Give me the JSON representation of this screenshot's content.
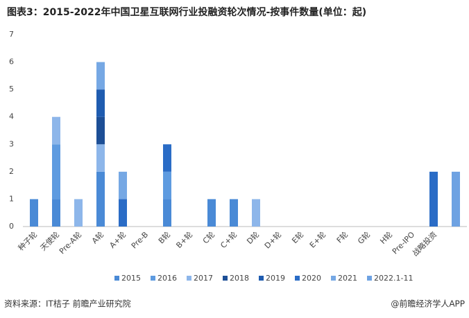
{
  "chart_data": {
    "type": "stacked_bar",
    "title": "图表3：2015-2022年中国卫星互联网行业投融资轮次情况-按事件数量(单位：起)",
    "categories": [
      "种子轮",
      "天使轮",
      "Pre-A轮",
      "A轮",
      "A+轮",
      "Pre-B",
      "B轮",
      "B+轮",
      "C轮",
      "C+轮",
      "D轮",
      "D+轮",
      "E轮",
      "E+轮",
      "F轮",
      "G轮",
      "H轮",
      "Pre-IPO",
      "战略投资",
      null
    ],
    "series": [
      {
        "name": "2015",
        "color": "#4a8ad6",
        "values": [
          1,
          1,
          0,
          2,
          0,
          0,
          1,
          0,
          1,
          1,
          0,
          0,
          0,
          0,
          0,
          0,
          0,
          0,
          0,
          0
        ]
      },
      {
        "name": "2016",
        "color": "#5e9be0",
        "values": [
          0,
          2,
          0,
          0,
          0,
          0,
          1,
          0,
          0,
          0,
          0,
          0,
          0,
          0,
          0,
          0,
          0,
          0,
          0,
          0
        ]
      },
      {
        "name": "2017",
        "color": "#8db6ea",
        "values": [
          0,
          1,
          1,
          1,
          0,
          0,
          0,
          0,
          0,
          0,
          1,
          0,
          0,
          0,
          0,
          0,
          0,
          0,
          0,
          0
        ]
      },
      {
        "name": "2018",
        "color": "#1d4f96",
        "values": [
          0,
          0,
          0,
          1,
          0,
          0,
          0,
          0,
          0,
          0,
          0,
          0,
          0,
          0,
          0,
          0,
          0,
          0,
          0,
          0
        ]
      },
      {
        "name": "2019",
        "color": "#1f5cb0",
        "values": [
          0,
          0,
          0,
          1,
          0,
          0,
          0,
          0,
          0,
          0,
          0,
          0,
          0,
          0,
          0,
          0,
          0,
          0,
          0,
          0
        ]
      },
      {
        "name": "2020",
        "color": "#2a6cc6",
        "values": [
          0,
          0,
          0,
          0,
          1,
          0,
          1,
          0,
          0,
          0,
          0,
          0,
          0,
          0,
          0,
          0,
          0,
          0,
          2,
          0
        ]
      },
      {
        "name": "2021",
        "color": "#76a8e4",
        "values": [
          0,
          0,
          0,
          1,
          1,
          0,
          0,
          0,
          0,
          0,
          0,
          0,
          0,
          0,
          0,
          0,
          0,
          0,
          0,
          0
        ]
      },
      {
        "name": "2022.1-11",
        "color": "#6ea2e2",
        "values": [
          0,
          0,
          0,
          0,
          0,
          0,
          0,
          0,
          0,
          0,
          0,
          0,
          0,
          0,
          0,
          0,
          0,
          0,
          0,
          2
        ]
      }
    ],
    "ylim": [
      0,
      7
    ],
    "yticks": [
      0,
      1,
      2,
      3,
      4,
      5,
      6,
      7
    ],
    "grid": false,
    "source": "资料来源：IT桔子 前瞻产业研究院",
    "credit": "@前瞻经济学人APP"
  }
}
